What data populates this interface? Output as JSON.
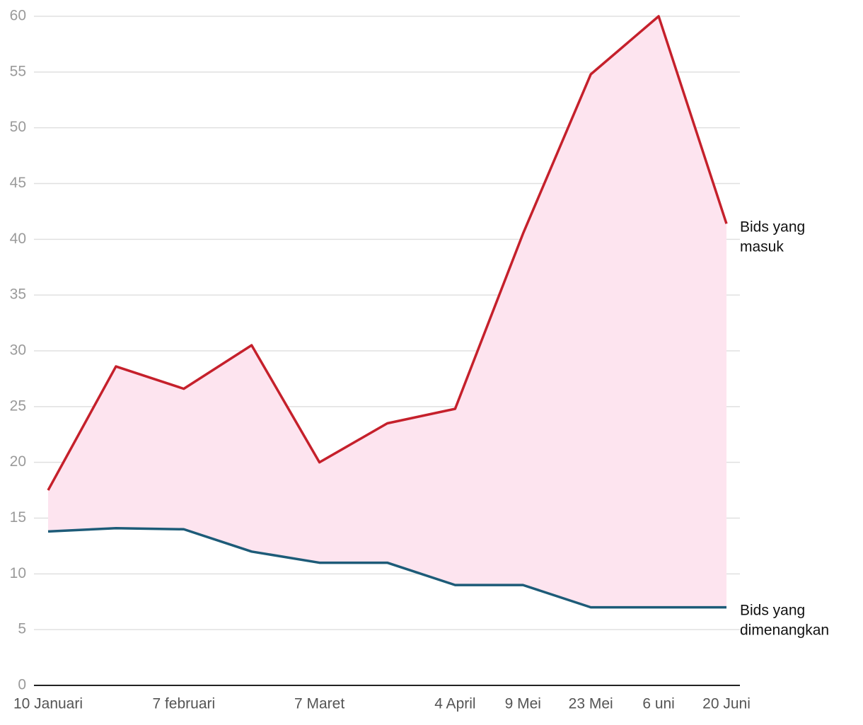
{
  "chart_data": {
    "type": "line",
    "x": [
      "10 Januari",
      null,
      "7 februari",
      null,
      "7 Maret",
      null,
      "4 April",
      "9 Mei",
      "23 Mei",
      "6 uni",
      "20 Juni"
    ],
    "series": [
      {
        "name": "Bids yang masuk",
        "color": "#c5202b",
        "values": [
          17.5,
          28.6,
          26.6,
          30.5,
          20,
          23.5,
          24.8,
          40.5,
          54.8,
          60,
          41.4
        ]
      },
      {
        "name": "Bids yang dimenangkan",
        "color": "#1d5b78",
        "values": [
          13.8,
          14.1,
          14,
          12,
          11,
          11,
          9,
          9,
          7,
          7,
          7
        ]
      }
    ],
    "band_color": "#fde4ef",
    "ylim": [
      0,
      60
    ],
    "yticks": [
      0,
      5,
      10,
      15,
      20,
      25,
      30,
      35,
      40,
      45,
      50,
      55,
      60
    ],
    "grid": true
  }
}
